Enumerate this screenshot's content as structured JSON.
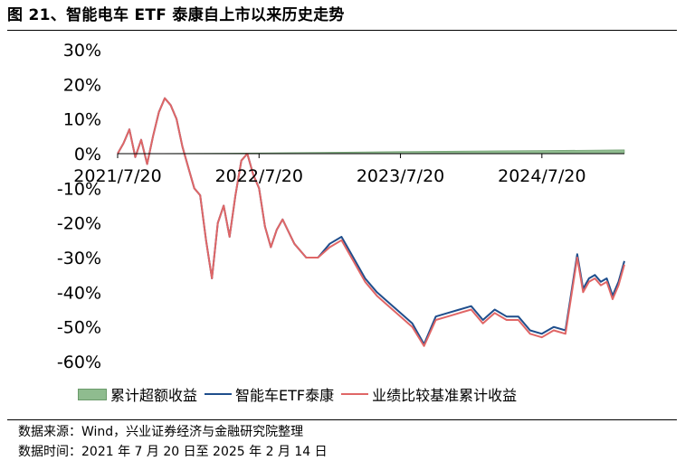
{
  "header": {
    "title": "图 21、智能电车 ETF 泰康自上市以来历史走势"
  },
  "chart_data": {
    "type": "line",
    "title": "图 21、智能电车 ETF 泰康自上市以来历史走势",
    "xlabel": "",
    "ylabel": "",
    "ylim": [
      -60,
      30
    ],
    "xlim": [
      0,
      43
    ],
    "x_unit": "months since 2021/7/20",
    "y_ticks": [
      30,
      20,
      10,
      0,
      -10,
      -20,
      -30,
      -40,
      -50,
      -60
    ],
    "y_tick_labels": [
      "30%",
      "20%",
      "10%",
      "0%",
      "-10%",
      "-20%",
      "-30%",
      "-40%",
      "-50%",
      "-60%"
    ],
    "x_ticks": [
      0,
      12,
      24,
      36
    ],
    "x_tick_labels": [
      "2021/7/20",
      "2022/7/20",
      "2023/7/20",
      "2024/7/20"
    ],
    "colors": {
      "excess": "#8fbc8f",
      "etf": "#1f4e8c",
      "benchmark": "#e06666"
    },
    "series": [
      {
        "name": "智能车ETF泰康",
        "x": [
          0,
          0.5,
          1,
          1.5,
          2,
          2.5,
          3,
          3.5,
          4,
          4.5,
          5,
          5.5,
          6,
          6.5,
          7,
          7.5,
          8,
          8.5,
          9,
          9.5,
          10,
          10.5,
          11,
          11.5,
          12,
          12.5,
          13,
          13.5,
          14,
          15,
          16,
          17,
          18,
          19,
          20,
          21,
          22,
          23,
          24,
          25,
          26,
          27,
          28,
          29,
          30,
          31,
          32,
          33,
          34,
          35,
          36,
          37,
          38,
          39,
          39.5,
          40,
          40.5,
          41,
          41.5,
          42,
          42.5,
          43
        ],
        "values": [
          0,
          3,
          7,
          -1,
          4,
          -3,
          5,
          12,
          16,
          14,
          10,
          2,
          -4,
          -10,
          -12,
          -25,
          -36,
          -20,
          -15,
          -24,
          -12,
          -2,
          0,
          -6,
          -10,
          -21,
          -27,
          -22,
          -19,
          -26,
          -30,
          -30,
          -26,
          -24,
          -30,
          -36,
          -40,
          -43,
          -46,
          -49,
          -55,
          -47,
          -46,
          -45,
          -44,
          -48,
          -45,
          -47,
          -47,
          -51,
          -52,
          -50,
          -51,
          -29,
          -39,
          -36,
          -35,
          -37,
          -36,
          -41,
          -37,
          -31
        ]
      },
      {
        "name": "业绩比较基准累计收益",
        "x": [
          0,
          0.5,
          1,
          1.5,
          2,
          2.5,
          3,
          3.5,
          4,
          4.5,
          5,
          5.5,
          6,
          6.5,
          7,
          7.5,
          8,
          8.5,
          9,
          9.5,
          10,
          10.5,
          11,
          11.5,
          12,
          12.5,
          13,
          13.5,
          14,
          15,
          16,
          17,
          18,
          19,
          20,
          21,
          22,
          23,
          24,
          25,
          26,
          27,
          28,
          29,
          30,
          31,
          32,
          33,
          34,
          35,
          36,
          37,
          38,
          39,
          39.5,
          40,
          40.5,
          41,
          41.5,
          42,
          42.5,
          43
        ],
        "values": [
          0,
          3,
          7,
          -1,
          4,
          -3,
          5,
          12,
          16,
          14,
          10,
          2,
          -4,
          -10,
          -12,
          -25,
          -36,
          -20,
          -15,
          -24,
          -12,
          -2,
          0,
          -6,
          -10,
          -21,
          -27,
          -22,
          -19,
          -26,
          -30,
          -30,
          -27,
          -25,
          -31,
          -37,
          -41,
          -44,
          -47,
          -50,
          -55.5,
          -48,
          -47,
          -46,
          -45,
          -49,
          -46,
          -48,
          -48,
          -52,
          -53,
          -51,
          -52,
          -30,
          -40,
          -37,
          -36,
          -38,
          -37,
          -42,
          -38,
          -32
        ]
      },
      {
        "name": "累计超额收益",
        "type": "area",
        "x": [
          0,
          12,
          24,
          36,
          43
        ],
        "values": [
          0,
          0.2,
          0.6,
          0.9,
          1.1
        ]
      }
    ]
  },
  "legend": {
    "excess": "累计超额收益",
    "etf": "智能车ETF泰康",
    "benchmark": "业绩比较基准累计收益"
  },
  "footer": {
    "source": "数据来源：Wind，兴业证券经济与金融研究院整理",
    "time": "数据时间：2021 年 7 月 20 日至 2025 年 2 月 14 日"
  }
}
